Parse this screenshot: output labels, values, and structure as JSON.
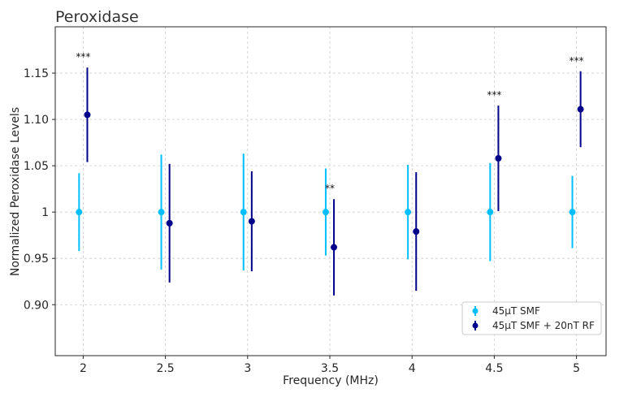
{
  "chart_data": {
    "type": "scatter",
    "title": "Peroxidase",
    "xlabel": "Frequency (MHz)",
    "ylabel": "Normalized Peroxidase Levels",
    "x_ticks": [
      "2",
      "2.5",
      "3",
      "3.5",
      "4",
      "4.5",
      "5"
    ],
    "y_ticks": [
      "0.90",
      "0.95",
      "1",
      "1.05",
      "1.10",
      "1.15"
    ],
    "xlim": [
      1.83,
      5.18
    ],
    "ylim": [
      0.845,
      1.2
    ],
    "grid": true,
    "legend_position": "bottom-right",
    "series": [
      {
        "name": "45μT SMF",
        "color": "#00bfff",
        "x": [
          2,
          2.5,
          3,
          3.5,
          4,
          4.5,
          5
        ],
        "y": [
          1.0,
          1.0,
          1.0,
          1.0,
          1.0,
          1.0,
          1.0
        ],
        "error": [
          0.042,
          0.062,
          0.063,
          0.047,
          0.051,
          0.053,
          0.039
        ]
      },
      {
        "name": "45μT SMF + 20nT RF",
        "color": "#00008b",
        "x": [
          2,
          2.5,
          3,
          3.5,
          4,
          4.5,
          5
        ],
        "y": [
          1.105,
          0.988,
          0.99,
          0.962,
          0.979,
          1.058,
          1.111
        ],
        "error": [
          0.051,
          0.064,
          0.054,
          0.052,
          0.064,
          0.057,
          0.041
        ]
      }
    ],
    "annotations": [
      {
        "x": 2,
        "text": "***"
      },
      {
        "x": 3.5,
        "text": "**"
      },
      {
        "x": 4.5,
        "text": "***"
      },
      {
        "x": 5,
        "text": "***"
      }
    ]
  }
}
